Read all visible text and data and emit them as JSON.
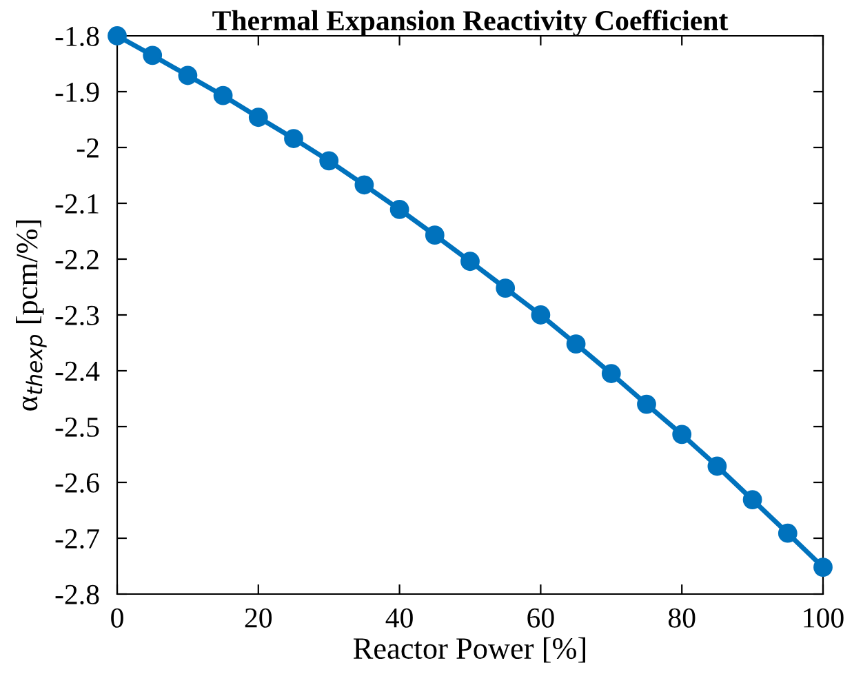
{
  "chart_data": {
    "type": "line",
    "title": "Thermal Expansion Reactivity Coefficient",
    "xlabel": "Reactor Power [%]",
    "ylabel": "α$_{thexp}$ [pcm/%]",
    "x": [
      0,
      5,
      10,
      15,
      20,
      25,
      30,
      35,
      40,
      45,
      50,
      55,
      60,
      65,
      70,
      75,
      80,
      85,
      90,
      95,
      100
    ],
    "series": [
      {
        "color": "#0072bd",
        "values": [
          -1.8,
          -1.835,
          -1.871,
          -1.907,
          -1.946,
          -1.984,
          -2.024,
          -2.067,
          -2.111,
          -2.157,
          -2.204,
          -2.252,
          -2.3,
          -2.352,
          -2.405,
          -2.46,
          -2.514,
          -2.571,
          -2.631,
          -2.691,
          -2.752
        ]
      }
    ],
    "xlim": [
      0,
      100
    ],
    "ylim": [
      -2.8,
      -1.8
    ],
    "xticks": [
      0,
      20,
      40,
      60,
      80,
      100
    ],
    "yticks": [
      {
        "value": -2.8,
        "label": "-2.8"
      },
      {
        "value": -2.7,
        "label": "-2.7"
      },
      {
        "value": -2.6,
        "label": "-2.6"
      },
      {
        "value": -2.5,
        "label": "-2.5"
      },
      {
        "value": -2.4,
        "label": "-2.4"
      },
      {
        "value": -2.3,
        "label": "-2.3"
      },
      {
        "value": -2.2,
        "label": "-2.2"
      },
      {
        "value": -2.1,
        "label": "-2.1"
      },
      {
        "value": -2.0,
        "label": "-2"
      },
      {
        "value": -1.9,
        "label": "-1.9"
      },
      {
        "value": -1.8,
        "label": "-1.8"
      }
    ],
    "marker": "circle",
    "line_style": "solid",
    "grid": false,
    "legend": false
  }
}
